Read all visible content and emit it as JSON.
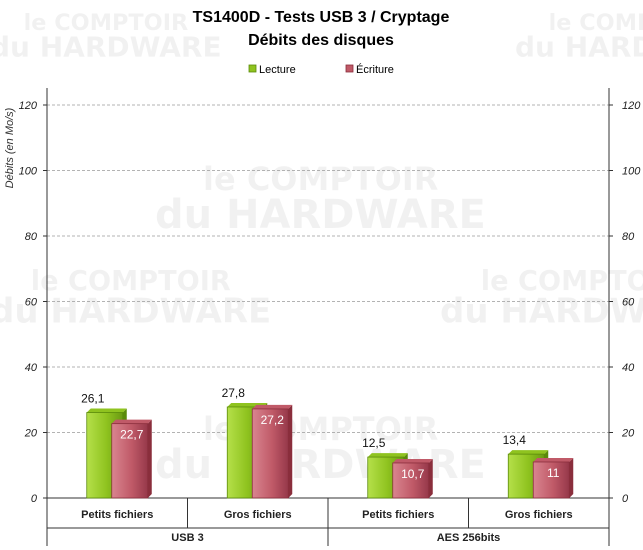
{
  "chart_data": {
    "type": "bar",
    "title": "TS1400D - Tests USB 3 / Cryptage",
    "subtitle": "Débits des disques",
    "ylabel": "Débits (en Mo/s)",
    "ylim": [
      0,
      120
    ],
    "yticks": [
      0,
      20,
      40,
      60,
      80,
      100,
      120
    ],
    "grid": true,
    "legend_position": "top-center",
    "categories": [
      "Petits fichiers",
      "Gros fichiers",
      "Petits fichiers",
      "Gros fichiers"
    ],
    "groups": [
      {
        "label": "USB 3",
        "categories": [
          0,
          1
        ]
      },
      {
        "label": "AES 256bits",
        "categories": [
          2,
          3
        ]
      }
    ],
    "series": [
      {
        "name": "Lecture",
        "values": [
          26.1,
          27.8,
          12.5,
          13.4
        ],
        "labels": [
          "26,1",
          "27,8",
          "12,5",
          "13,4"
        ],
        "color": "#8fc31f",
        "color_dark": "#5a8a0a"
      },
      {
        "name": "Écriture",
        "values": [
          22.7,
          27.2,
          10.7,
          11
        ],
        "labels": [
          "22,7",
          "27,2",
          "10,7",
          "11"
        ],
        "color": "#c05a68",
        "color_dark": "#8a2e3c"
      }
    ]
  },
  "watermark": {
    "line1": "le COMPTOIR",
    "line2": "du HARDWARE"
  }
}
